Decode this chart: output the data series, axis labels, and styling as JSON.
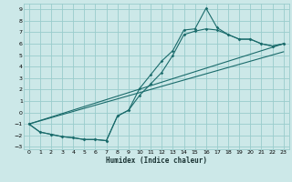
{
  "xlabel": "Humidex (Indice chaleur)",
  "bg_color": "#cce8e8",
  "grid_color": "#99cccc",
  "line_color": "#1a6b6b",
  "xlim": [
    -0.5,
    23.5
  ],
  "ylim": [
    -3.2,
    9.5
  ],
  "xticks": [
    0,
    1,
    2,
    3,
    4,
    5,
    6,
    7,
    8,
    9,
    10,
    11,
    12,
    13,
    14,
    15,
    16,
    17,
    18,
    19,
    20,
    21,
    22,
    23
  ],
  "yticks": [
    -3,
    -2,
    -1,
    0,
    1,
    2,
    3,
    4,
    5,
    6,
    7,
    8,
    9
  ],
  "curve1_x": [
    0,
    1,
    2,
    3,
    4,
    5,
    6,
    7,
    8,
    9,
    10,
    11,
    12,
    13,
    14,
    15,
    16,
    17,
    18,
    19,
    20,
    21,
    22,
    23
  ],
  "curve1_y": [
    -1.0,
    -1.7,
    -1.9,
    -2.1,
    -2.2,
    -2.35,
    -2.35,
    -2.45,
    -0.3,
    0.2,
    2.1,
    3.3,
    4.5,
    5.4,
    7.2,
    7.3,
    9.1,
    7.4,
    6.8,
    6.4,
    6.4,
    6.0,
    5.8,
    6.0
  ],
  "curve2_x": [
    0,
    1,
    2,
    3,
    4,
    5,
    6,
    7,
    8,
    9,
    10,
    11,
    12,
    13,
    14,
    15,
    16,
    17,
    18,
    19,
    20,
    21,
    22,
    23
  ],
  "curve2_y": [
    -1.0,
    -1.7,
    -1.9,
    -2.1,
    -2.2,
    -2.35,
    -2.35,
    -2.45,
    -0.3,
    0.2,
    1.5,
    2.5,
    3.5,
    5.0,
    6.8,
    7.1,
    7.3,
    7.2,
    6.8,
    6.4,
    6.4,
    6.0,
    5.8,
    6.0
  ],
  "line1_x": [
    0,
    23
  ],
  "line1_y": [
    -1.0,
    6.0
  ],
  "line2_x": [
    0,
    23
  ],
  "line2_y": [
    -1.0,
    5.3
  ]
}
